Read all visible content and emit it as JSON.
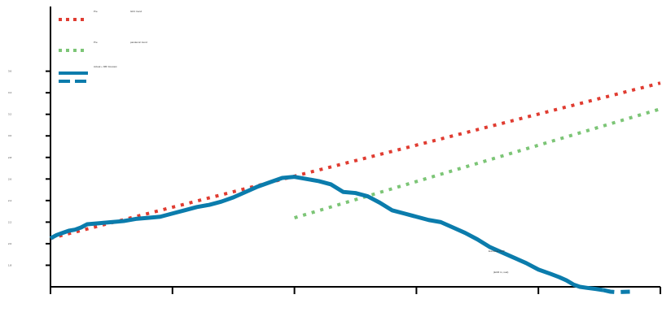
{
  "chart_data": {
    "type": "line",
    "title": "",
    "xlabel": "",
    "ylabel": "",
    "x_range": [
      0,
      100
    ],
    "ylim": [
      1.6,
      4.2
    ],
    "y_ticks": [
      {
        "value": 1.8,
        "label": "1.8"
      },
      {
        "value": 2.0,
        "label": "2.0"
      },
      {
        "value": 2.2,
        "label": "2.2"
      },
      {
        "value": 2.4,
        "label": "2.4"
      },
      {
        "value": 2.6,
        "label": "2.6"
      },
      {
        "value": 2.8,
        "label": "2.8"
      },
      {
        "value": 3.0,
        "label": "3.0"
      },
      {
        "value": 3.2,
        "label": "3.2"
      },
      {
        "value": 3.4,
        "label": "3.4"
      },
      {
        "value": 3.6,
        "label": "3.6"
      }
    ],
    "x_ticks": [
      0,
      20,
      40,
      60,
      80,
      100
    ],
    "legend": [
      {
        "key": "pre_gfc",
        "label": "Pre",
        "label2": "GFC trend",
        "color": "#e03c31",
        "style": "dotted"
      },
      {
        "key": "post_gfc",
        "label": "Pre",
        "label2": "pandemic trend",
        "color": "#7cc576",
        "style": "dotted"
      },
      {
        "key": "actual",
        "label": "Actual + IMF forecast",
        "color": "#0b7cac",
        "style": "solid-dashed"
      }
    ],
    "annotations": [
      "Euroarea GDP",
      "(EUR tn, real)"
    ],
    "series": [
      {
        "key": "pre_gfc",
        "style": "dotted",
        "color": "#e03c31",
        "points": [
          [
            0,
            2.05
          ],
          [
            100,
            3.49
          ]
        ]
      },
      {
        "key": "post_gfc",
        "style": "dotted",
        "color": "#7cc576",
        "points": [
          [
            40,
            2.24
          ],
          [
            100,
            3.25
          ]
        ]
      },
      {
        "key": "actual",
        "style": "solid",
        "color": "#0b7cac",
        "points": [
          [
            0,
            2.05
          ],
          [
            1,
            2.08
          ],
          [
            2,
            2.1
          ],
          [
            3,
            2.12
          ],
          [
            4,
            2.13
          ],
          [
            5,
            2.15
          ],
          [
            6,
            2.18
          ],
          [
            8,
            2.19
          ],
          [
            10,
            2.2
          ],
          [
            12,
            2.21
          ],
          [
            14,
            2.23
          ],
          [
            16,
            2.24
          ],
          [
            18,
            2.25
          ],
          [
            20,
            2.28
          ],
          [
            22,
            2.31
          ],
          [
            24,
            2.34
          ],
          [
            26,
            2.36
          ],
          [
            28,
            2.39
          ],
          [
            30,
            2.43
          ],
          [
            32,
            2.48
          ],
          [
            34,
            2.53
          ],
          [
            36,
            2.57
          ],
          [
            38,
            2.61
          ],
          [
            40,
            2.62
          ],
          [
            42,
            2.6
          ],
          [
            44,
            2.58
          ],
          [
            46,
            2.55
          ],
          [
            48,
            2.48
          ],
          [
            50,
            2.47
          ],
          [
            52,
            2.44
          ],
          [
            54,
            2.38
          ],
          [
            56,
            2.31
          ],
          [
            58,
            2.28
          ],
          [
            60,
            2.25
          ],
          [
            62,
            2.22
          ],
          [
            64,
            2.2
          ],
          [
            66,
            2.15
          ],
          [
            68,
            2.1
          ],
          [
            70,
            2.04
          ],
          [
            72,
            1.97
          ],
          [
            74,
            1.92
          ],
          [
            76,
            1.87
          ],
          [
            78,
            1.82
          ],
          [
            80,
            1.76
          ],
          [
            82,
            1.72
          ],
          [
            83.4,
            1.69
          ],
          [
            84.6,
            1.66
          ],
          [
            85.8,
            1.62
          ],
          [
            86.8,
            1.6
          ],
          [
            88,
            1.59
          ],
          [
            89.4,
            1.58
          ],
          [
            90.6,
            1.57
          ],
          [
            91.8,
            1.555
          ],
          [
            93,
            1.55
          ],
          [
            94,
            1.553
          ],
          [
            95,
            1.555
          ]
        ]
      }
    ]
  }
}
